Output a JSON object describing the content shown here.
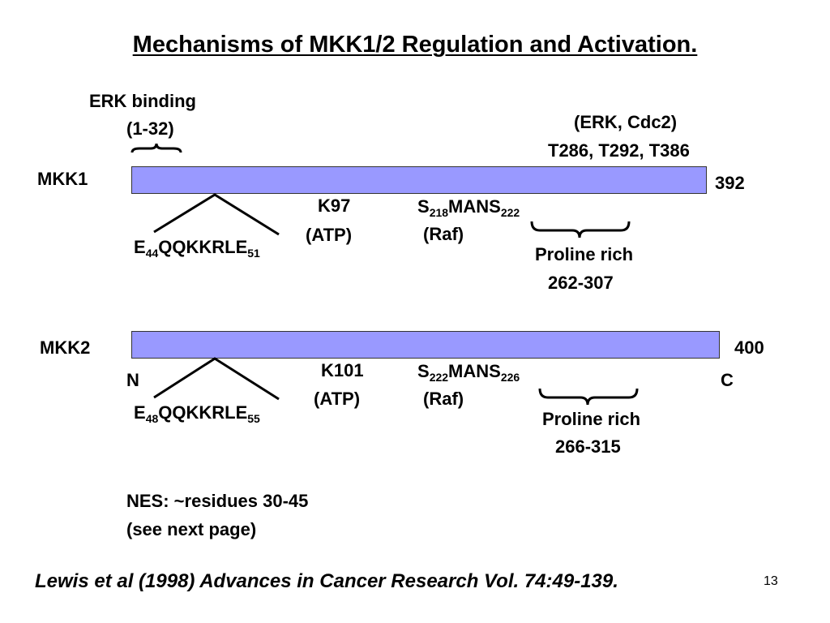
{
  "title": "Mechanisms of MKK1/2 Regulation and Activation.",
  "colors": {
    "bar_fill": "#9999ff",
    "text": "#000000"
  },
  "mkk1": {
    "name": "MKK1",
    "end": "392",
    "erk_binding": {
      "label": "ERK binding",
      "range": "(1-32)"
    },
    "phospho": {
      "kinases": "(ERK, Cdc2)",
      "sites": "T286, T292, T386"
    },
    "motif": {
      "start_letter": "E",
      "start_num": "44",
      "sequence": "QQKKRLE",
      "end_num": "51"
    },
    "atp_site": {
      "residue": "K97",
      "note": "(ATP)"
    },
    "raf_site": {
      "start_letter": "S",
      "start_num": "218",
      "sequence": "MANS",
      "end_num": "222",
      "note": "(Raf)"
    },
    "proline": {
      "label": "Proline rich",
      "range": "262-307"
    }
  },
  "mkk2": {
    "name": "MKK2",
    "end": "400",
    "n_term": "N",
    "c_term": "C",
    "motif": {
      "start_letter": "E",
      "start_num": "48",
      "sequence": "QQKKRLE",
      "end_num": "55"
    },
    "atp_site": {
      "residue": "K101",
      "note": "(ATP)"
    },
    "raf_site": {
      "start_letter": "S",
      "start_num": "222",
      "sequence": "MANS",
      "end_num": "226",
      "note": "(Raf)"
    },
    "proline": {
      "label": "Proline rich",
      "range": "266-315"
    }
  },
  "nes": {
    "line1": "NES: ~residues 30-45",
    "line2": "(see next page)"
  },
  "citation": "Lewis et al (1998) Advances in Cancer Research Vol. 74:49-139.",
  "page_number": "13"
}
